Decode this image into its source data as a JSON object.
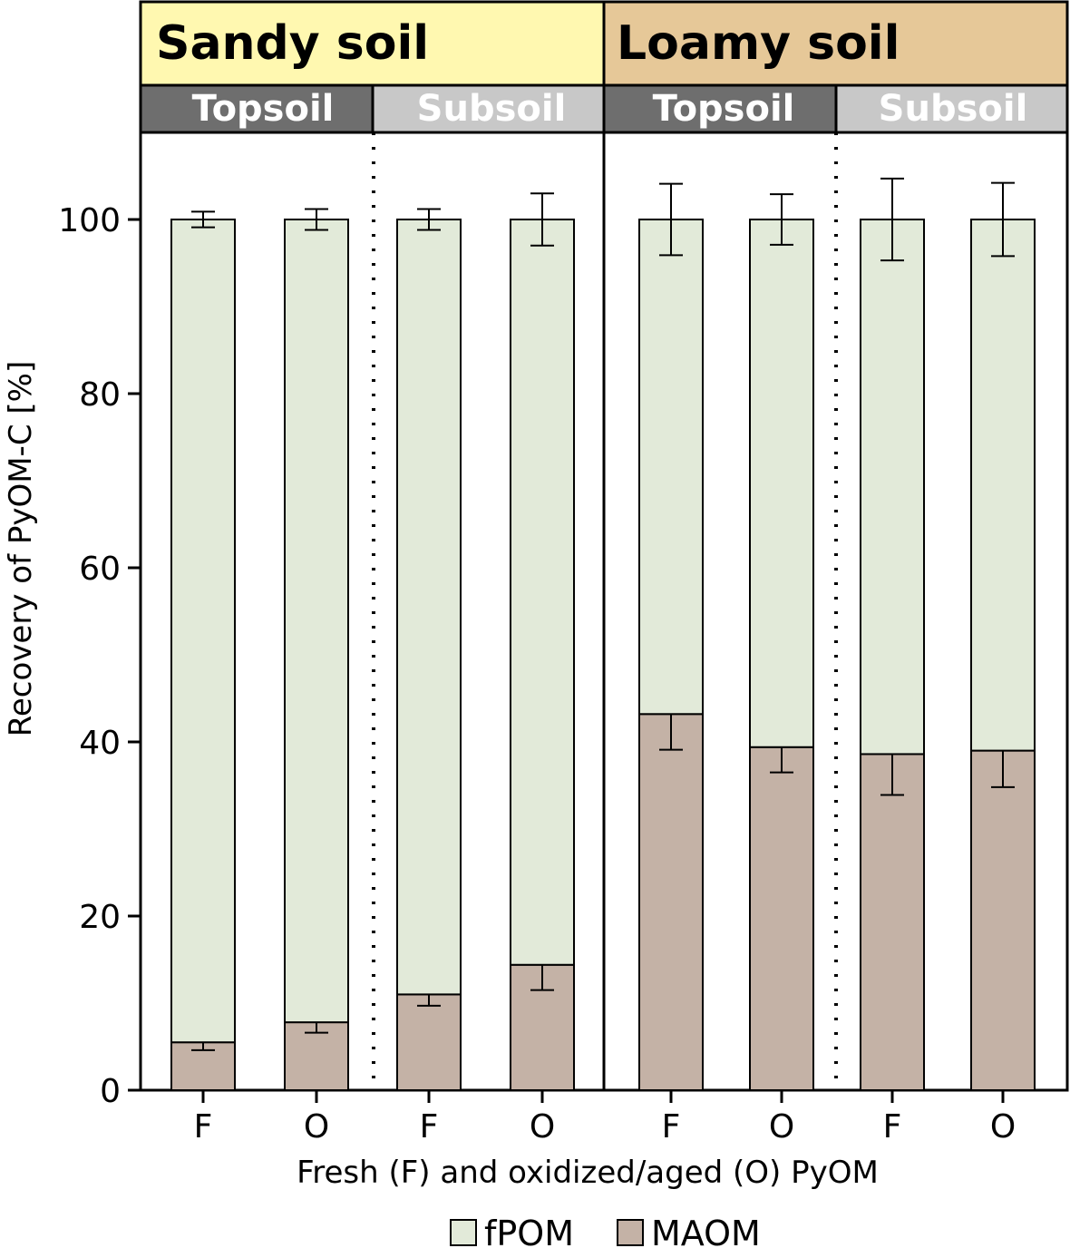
{
  "chart_data": {
    "type": "bar",
    "stacked": true,
    "panels": [
      {
        "label": "Sandy soil",
        "color": "#fff8b0"
      },
      {
        "label": "Loamy soil",
        "color": "#e6c898"
      }
    ],
    "subgroups": [
      {
        "label": "Topsoil",
        "color": "#6e6e6e"
      },
      {
        "label": "Subsoil",
        "color": "#c8c8c8"
      },
      {
        "label": "Topsoil",
        "color": "#6e6e6e"
      },
      {
        "label": "Subsoil",
        "color": "#c8c8c8"
      }
    ],
    "categories": [
      "F",
      "O",
      "F",
      "O",
      "F",
      "O",
      "F",
      "O"
    ],
    "series": [
      {
        "name": "MAOM",
        "color": "#c4b2a6",
        "values": [
          5.5,
          7.8,
          11.0,
          14.4,
          43.2,
          39.4,
          38.6,
          39.0
        ],
        "errors": [
          0.9,
          1.2,
          1.3,
          2.9,
          4.1,
          2.9,
          4.7,
          4.2
        ]
      },
      {
        "name": "fPOM",
        "color": "#e2ead9",
        "values": [
          94.5,
          92.2,
          89.0,
          85.6,
          56.8,
          60.6,
          61.4,
          61.0
        ],
        "errors": [
          0.9,
          1.2,
          1.2,
          3.0,
          4.1,
          2.9,
          4.7,
          4.2
        ]
      }
    ],
    "yticks": [
      "0",
      "20",
      "40",
      "60",
      "80",
      "100"
    ],
    "ylim": [
      0,
      110
    ],
    "ylabel": "Recovery of PyOM-C [%]",
    "xlabel": "Fresh (F) and oxidized/aged (O) PyOM",
    "legend": {
      "position": "bottom-center",
      "items": [
        "fPOM",
        "MAOM"
      ]
    }
  }
}
